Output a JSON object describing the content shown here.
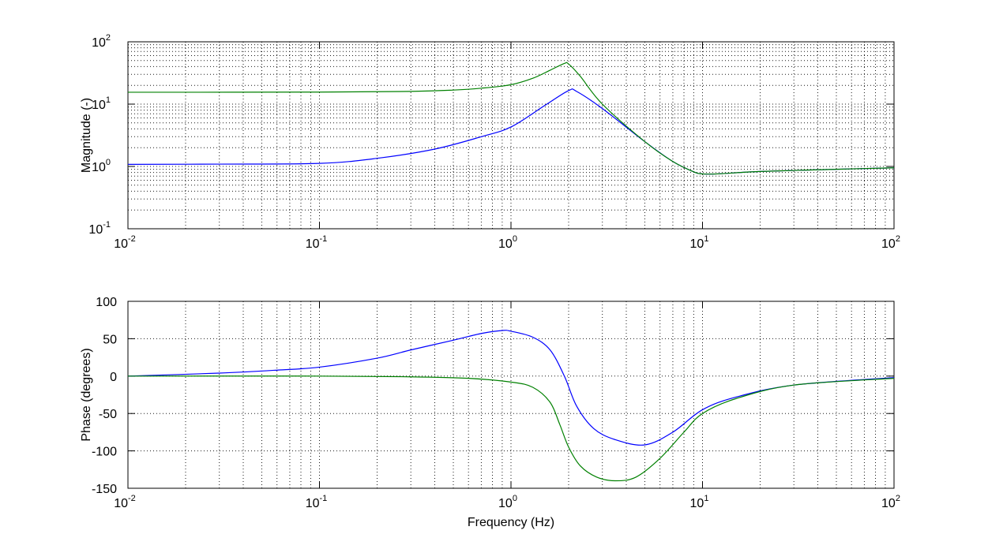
{
  "chart_data": [
    {
      "type": "line",
      "title": "",
      "xlabel": "",
      "ylabel": "Magnitude (-)",
      "xscale": "log",
      "yscale": "log",
      "xlim": [
        0.01,
        100
      ],
      "ylim": [
        0.1,
        100
      ],
      "grid": true,
      "x_ticks": [
        0.01,
        0.1,
        1,
        10,
        100
      ],
      "x_tick_labels": [
        [
          "10",
          "-2"
        ],
        [
          "10",
          "-1"
        ],
        [
          "10",
          "0"
        ],
        [
          "10",
          "1"
        ],
        [
          "10",
          "2"
        ]
      ],
      "y_ticks": [
        0.1,
        1,
        10,
        100
      ],
      "y_tick_labels": [
        [
          "10",
          "-1"
        ],
        [
          "10",
          "0"
        ],
        [
          "10",
          "1"
        ],
        [
          "10",
          "2"
        ]
      ],
      "series": [
        {
          "color": "#0000ff",
          "x": [
            0.01,
            0.03,
            0.1,
            0.2,
            0.4,
            0.7,
            1.0,
            1.5,
            2.0,
            2.2,
            3.0,
            5.0,
            7.0,
            9.0,
            10.0,
            12.0,
            20.0,
            50.0,
            100.0
          ],
          "y": [
            1.08,
            1.09,
            1.12,
            1.35,
            1.9,
            3.0,
            4.3,
            9.5,
            16.5,
            16.0,
            8.5,
            2.5,
            1.2,
            0.82,
            0.76,
            0.76,
            0.83,
            0.9,
            0.95
          ]
        },
        {
          "color": "#008000",
          "x": [
            0.01,
            0.1,
            0.3,
            0.5,
            0.7,
            1.0,
            1.3,
            1.6,
            1.9,
            2.0,
            2.3,
            3.0,
            5.0,
            7.0,
            9.0,
            10.0,
            12.0,
            20.0,
            50.0,
            100.0
          ],
          "y": [
            15.5,
            15.6,
            16.0,
            16.8,
            18.0,
            20.5,
            26.0,
            35.0,
            45.0,
            44.0,
            28.0,
            10.0,
            2.5,
            1.2,
            0.82,
            0.76,
            0.76,
            0.83,
            0.9,
            0.95
          ]
        }
      ]
    },
    {
      "type": "line",
      "title": "",
      "xlabel": "Frequency (Hz)",
      "ylabel": "Phase (degrees)",
      "xscale": "log",
      "yscale": "linear",
      "xlim": [
        0.01,
        100
      ],
      "ylim": [
        -150,
        100
      ],
      "grid": true,
      "x_ticks": [
        0.01,
        0.1,
        1,
        10,
        100
      ],
      "x_tick_labels": [
        [
          "10",
          "-2"
        ],
        [
          "10",
          "-1"
        ],
        [
          "10",
          "0"
        ],
        [
          "10",
          "1"
        ],
        [
          "10",
          "2"
        ]
      ],
      "y_ticks": [
        -150,
        -100,
        -50,
        0,
        50,
        100
      ],
      "y_tick_labels": [
        "-150",
        "-100",
        "-50",
        "0",
        "50",
        "100"
      ],
      "series": [
        {
          "color": "#0000ff",
          "x": [
            0.01,
            0.03,
            0.06,
            0.1,
            0.2,
            0.3,
            0.5,
            0.7,
            0.9,
            1.0,
            1.3,
            1.6,
            1.9,
            2.2,
            2.7,
            3.5,
            5.0,
            7.0,
            10.0,
            15.0,
            30.0,
            100.0
          ],
          "y": [
            0,
            4,
            8,
            12,
            24,
            35,
            48,
            57,
            61,
            60,
            52,
            35,
            0,
            -40,
            -70,
            -85,
            -92,
            -75,
            -45,
            -28,
            -12,
            -2
          ]
        },
        {
          "color": "#008000",
          "x": [
            0.01,
            0.1,
            0.3,
            0.6,
            1.0,
            1.3,
            1.6,
            1.8,
            2.0,
            2.3,
            2.8,
            3.5,
            4.5,
            6.0,
            8.0,
            10.0,
            15.0,
            30.0,
            100.0
          ],
          "y": [
            0,
            0,
            -1,
            -3,
            -8,
            -15,
            -35,
            -65,
            -95,
            -120,
            -135,
            -140,
            -135,
            -110,
            -75,
            -50,
            -30,
            -12,
            -3
          ]
        }
      ]
    }
  ]
}
